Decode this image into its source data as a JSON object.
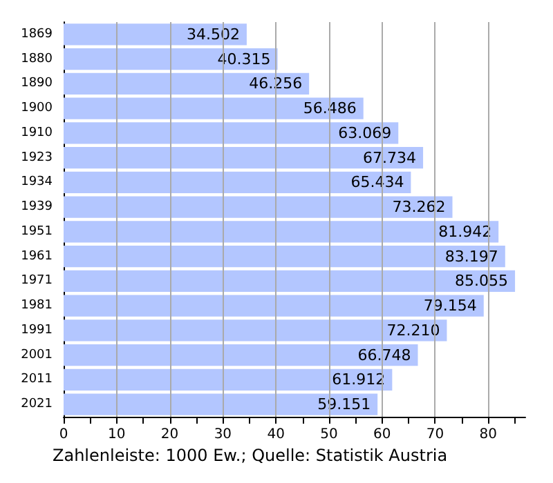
{
  "chart_data": {
    "type": "bar",
    "orientation": "horizontal",
    "categories": [
      "1869",
      "1880",
      "1890",
      "1900",
      "1910",
      "1923",
      "1934",
      "1939",
      "1951",
      "1961",
      "1971",
      "1981",
      "1991",
      "2001",
      "2011",
      "2021"
    ],
    "values": [
      34.502,
      40.315,
      46.256,
      56.486,
      63.069,
      67.734,
      65.434,
      73.262,
      81.942,
      83.197,
      85.055,
      79.154,
      72.21,
      66.748,
      61.912,
      59.151
    ],
    "color": "#b3c6ff",
    "value_labels": [
      "34.502",
      "40.315",
      "46.256",
      "56.486",
      "63.069",
      "67.734",
      "65.434",
      "73.262",
      "81.942",
      "83.197",
      "85.055",
      "79.154",
      "72.210",
      "66.748",
      "61.912",
      "59.151"
    ],
    "grid": "x",
    "xlim": [
      0,
      87
    ],
    "xticks": [
      0,
      {
        "value": 5,
        "label": null
      },
      10,
      {
        "value": 15,
        "label": null
      },
      20,
      {
        "value": 25,
        "label": null
      },
      30,
      {
        "value": 35,
        "label": null
      },
      40,
      {
        "value": 45,
        "label": null
      },
      50,
      {
        "value": 55,
        "label": null
      },
      60,
      {
        "value": 65,
        "label": null
      },
      70,
      {
        "value": 75,
        "label": null
      },
      80,
      {
        "value": 85,
        "label": null
      }
    ],
    "annotations": [
      "Zahlenleiste: 1000 Ew.; Quelle: Statistik Austria"
    ]
  }
}
